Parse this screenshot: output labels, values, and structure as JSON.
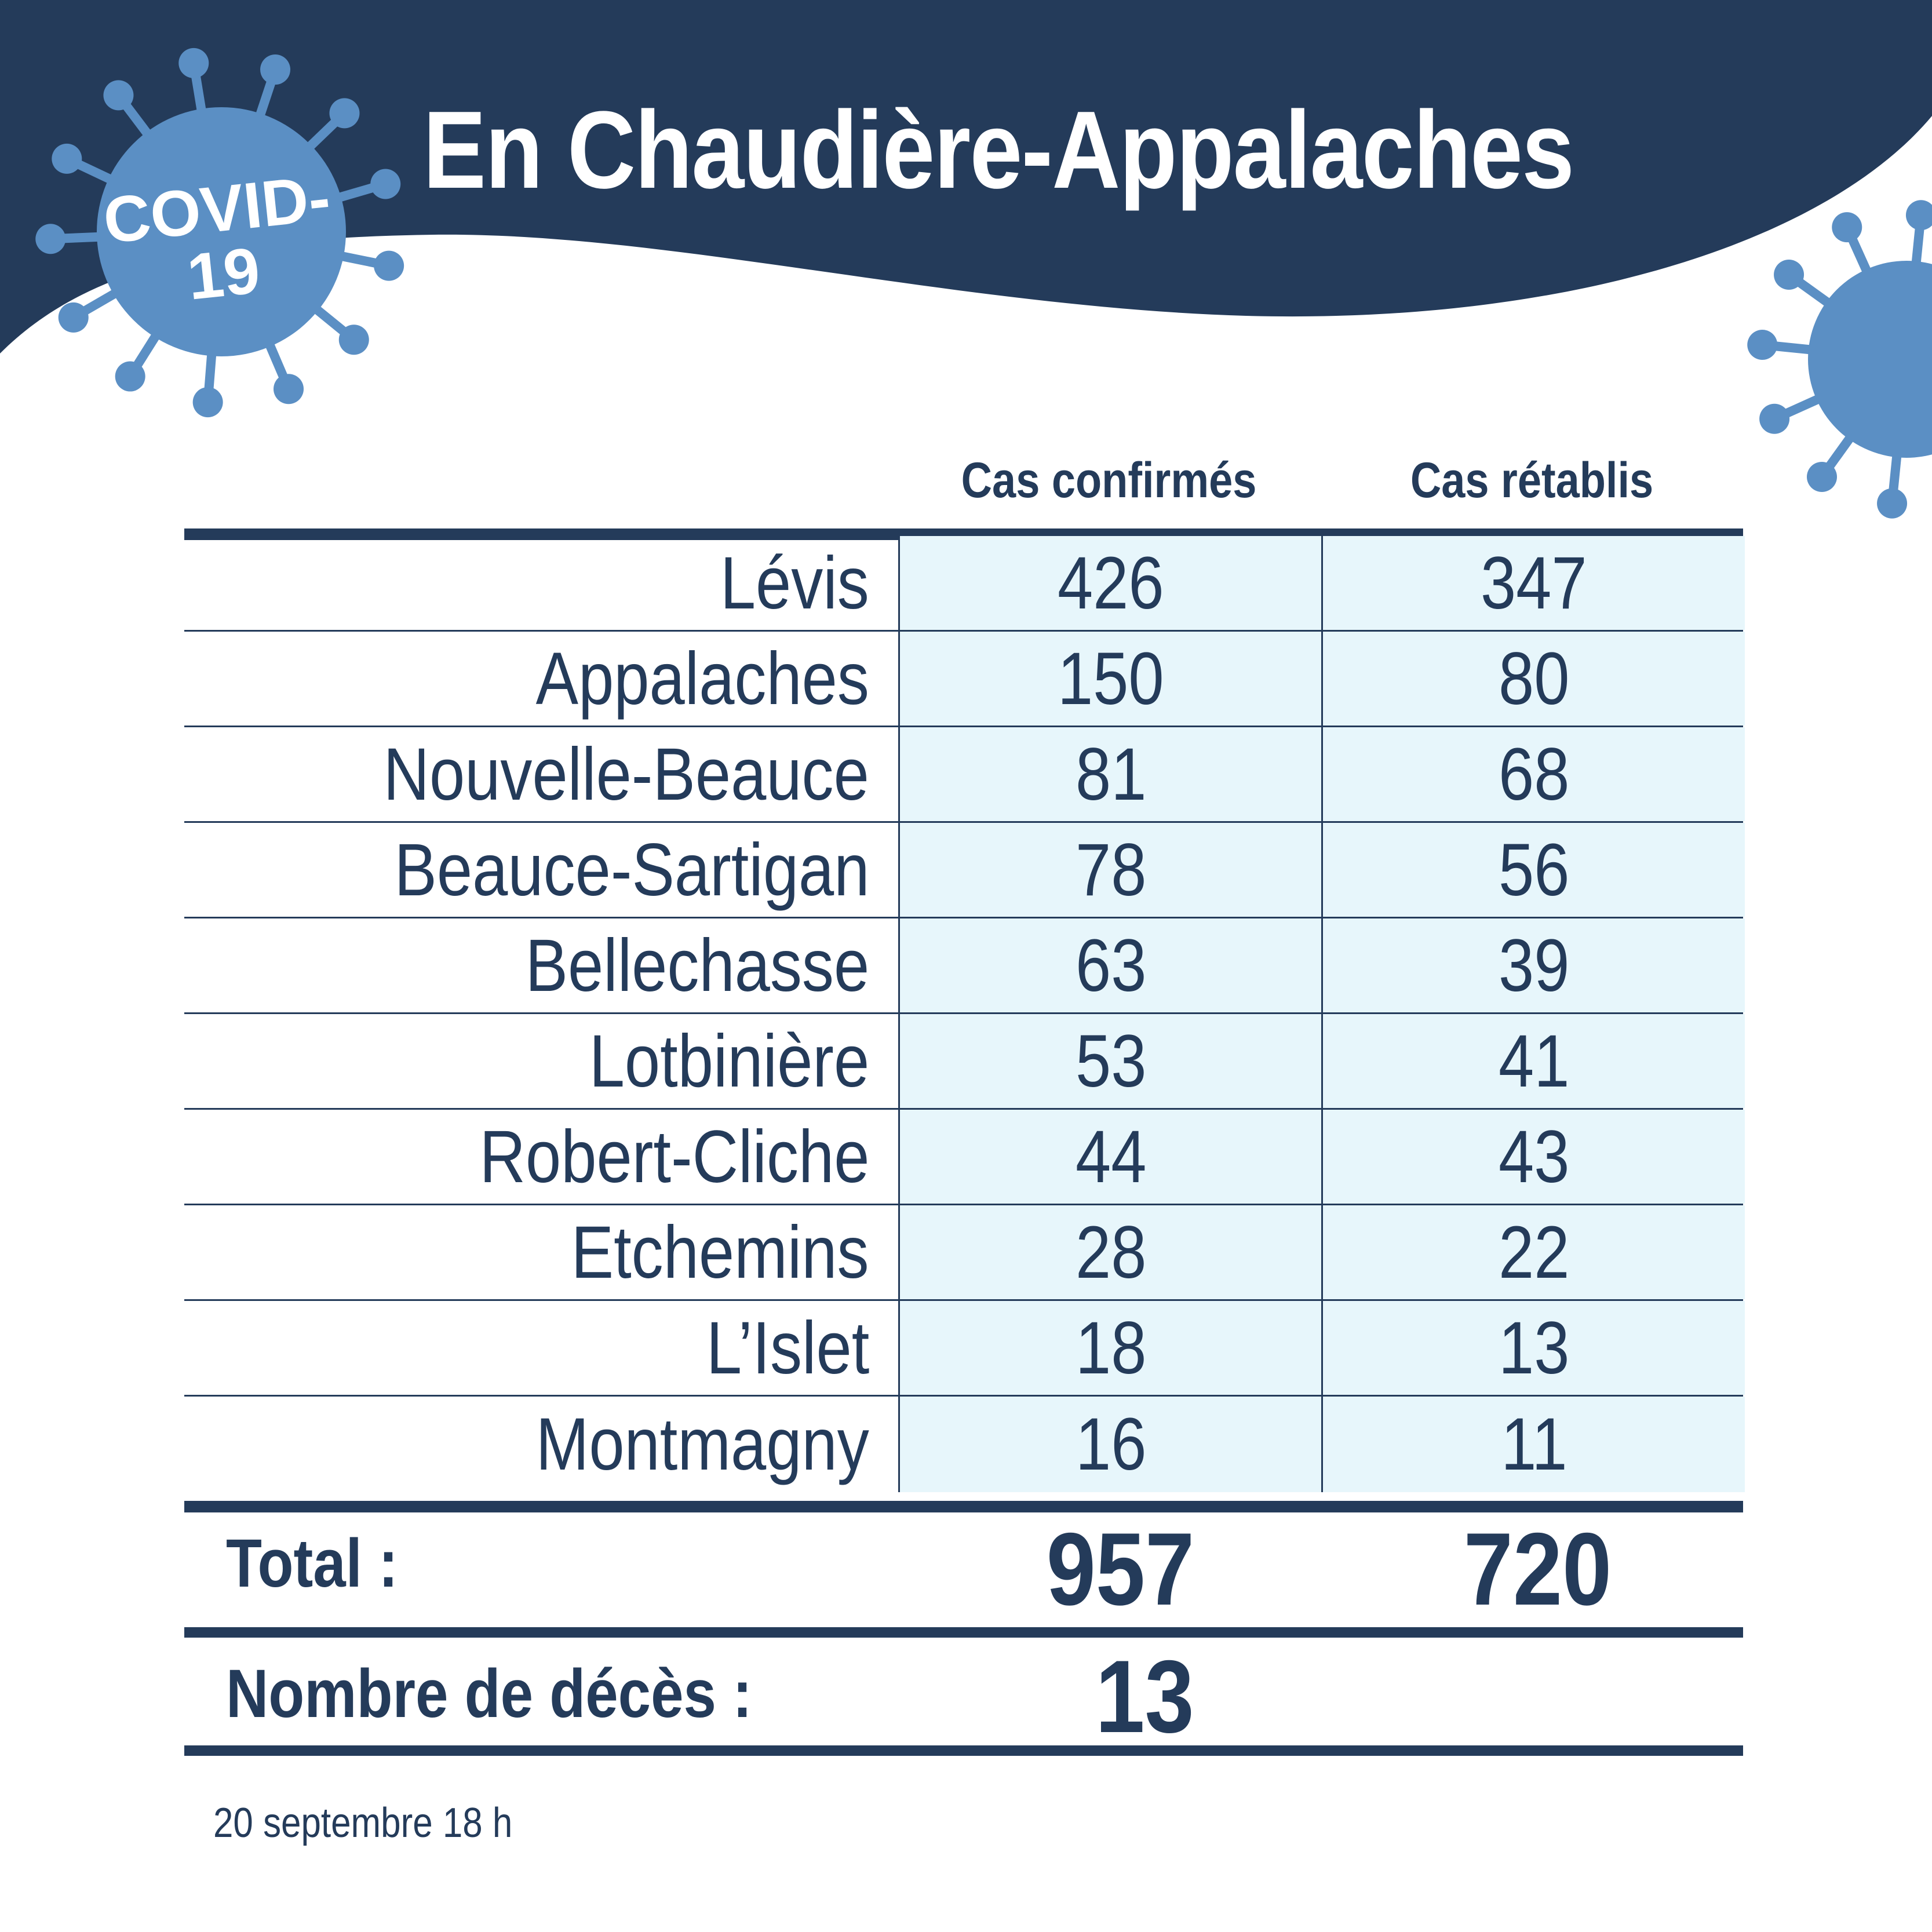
{
  "header": {
    "title": "En Chaudière-Appalaches",
    "badge_line1": "COVID-",
    "badge_line2": "19"
  },
  "colors": {
    "navy": "#243b5a",
    "virus_blue": "#5b8fc4",
    "cell_bg": "#e7f6fb"
  },
  "table": {
    "columns": [
      "Cas confirmés",
      "Cas rétablis"
    ],
    "rows": [
      {
        "region": "Lévis",
        "confirmed": "426",
        "recovered": "347"
      },
      {
        "region": "Appalaches",
        "confirmed": "150",
        "recovered": "80"
      },
      {
        "region": "Nouvelle-Beauce",
        "confirmed": "81",
        "recovered": "68"
      },
      {
        "region": "Beauce-Sartigan",
        "confirmed": "78",
        "recovered": "56"
      },
      {
        "region": "Bellechasse",
        "confirmed": "63",
        "recovered": "39"
      },
      {
        "region": "Lotbinière",
        "confirmed": "53",
        "recovered": "41"
      },
      {
        "region": "Robert-Cliche",
        "confirmed": "44",
        "recovered": "43"
      },
      {
        "region": "Etchemins",
        "confirmed": "28",
        "recovered": "22"
      },
      {
        "region": "L’Islet",
        "confirmed": "18",
        "recovered": "13"
      },
      {
        "region": "Montmagny",
        "confirmed": "16",
        "recovered": "11"
      }
    ]
  },
  "totals": {
    "label": "Total :",
    "confirmed": "957",
    "recovered": "720"
  },
  "deaths": {
    "label": "Nombre de décès :",
    "value": "13"
  },
  "footnote": "20 septembre 18 h"
}
